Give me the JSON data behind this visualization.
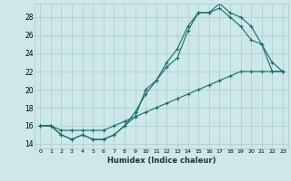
{
  "xlabel": "Humidex (Indice chaleur)",
  "bg_color": "#cce8e8",
  "grid_color": "#aacccc",
  "line_color": "#1a6b6b",
  "xlim": [
    -0.5,
    23.5
  ],
  "ylim": [
    13.5,
    29.5
  ],
  "yticks": [
    14,
    16,
    18,
    20,
    22,
    24,
    26,
    28
  ],
  "xticks": [
    0,
    1,
    2,
    3,
    4,
    5,
    6,
    7,
    8,
    9,
    10,
    11,
    12,
    13,
    14,
    15,
    16,
    17,
    18,
    19,
    20,
    21,
    22,
    23
  ],
  "series1_x": [
    0,
    1,
    2,
    3,
    4,
    5,
    6,
    7,
    8,
    9,
    10,
    11,
    12,
    13,
    14,
    15,
    16,
    17,
    18,
    19,
    20,
    21,
    22,
    23
  ],
  "series1_y": [
    16,
    16,
    15.5,
    15.5,
    15.5,
    15.5,
    15.5,
    16,
    16.5,
    17,
    17.5,
    18,
    18.5,
    19,
    19.5,
    20,
    20.5,
    21,
    21.5,
    22,
    22,
    22,
    22,
    22
  ],
  "series2_x": [
    0,
    1,
    2,
    3,
    4,
    5,
    6,
    7,
    8,
    9,
    10,
    11,
    12,
    13,
    14,
    15,
    16,
    17,
    18,
    19,
    20,
    21,
    22,
    23
  ],
  "series2_y": [
    16,
    16,
    15,
    14.5,
    15,
    14.5,
    14.5,
    15,
    16,
    17.5,
    19.5,
    21,
    23,
    24.5,
    27,
    28.5,
    28.5,
    29,
    28,
    27,
    25.5,
    25,
    22,
    22
  ],
  "series3_x": [
    0,
    1,
    2,
    3,
    4,
    5,
    6,
    7,
    8,
    9,
    10,
    11,
    12,
    13,
    14,
    15,
    16,
    17,
    18,
    19,
    20,
    21,
    22,
    23
  ],
  "series3_y": [
    16,
    16,
    15,
    14.5,
    15,
    14.5,
    14.5,
    15,
    16,
    17,
    20,
    21,
    22.5,
    23.5,
    26.5,
    28.5,
    28.5,
    29.5,
    28.5,
    28,
    27,
    25,
    23,
    22
  ]
}
